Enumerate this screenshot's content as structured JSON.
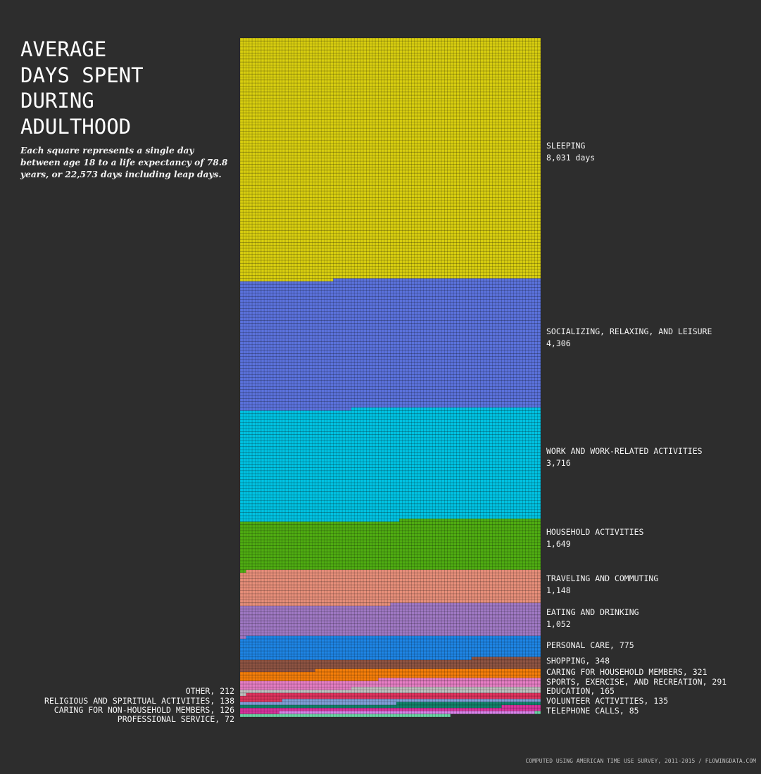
{
  "chart_data": {
    "type": "waffle",
    "title": [
      "AVERAGE",
      "DAYS SPENT",
      "DURING",
      "ADULTHOOD"
    ],
    "subtitle": "Each square represents a single day between age 18 to a life expectancy of 78.8 years, or 22,573 days including leap days.",
    "total_days": 22573,
    "columns": 100,
    "unit": "days",
    "categories": [
      {
        "name": "SLEEPING",
        "value": 8031,
        "value_label": "8,031 days",
        "color": "#d8ce10",
        "label_side": "right",
        "label_style": "two-line"
      },
      {
        "name": "SOCIALIZING, RELAXING, AND LEISURE",
        "value": 4306,
        "value_label": "4,306",
        "color": "#5b72dc",
        "label_side": "right",
        "label_style": "two-line"
      },
      {
        "name": "WORK AND WORK-RELATED ACTIVITIES",
        "value": 3716,
        "value_label": "3,716",
        "color": "#00c2e2",
        "label_side": "right",
        "label_style": "two-line"
      },
      {
        "name": "HOUSEHOLD ACTIVITIES",
        "value": 1649,
        "value_label": "1,649",
        "color": "#4fad12",
        "label_side": "right",
        "label_style": "two-line"
      },
      {
        "name": "TRAVELING AND COMMUTING",
        "value": 1148,
        "value_label": "1,148",
        "color": "#e78f7a",
        "label_side": "right",
        "label_style": "two-line"
      },
      {
        "name": "EATING AND DRINKING",
        "value": 1052,
        "value_label": "1,052",
        "color": "#a079c4",
        "label_side": "right",
        "label_style": "two-line"
      },
      {
        "name": "PERSONAL CARE",
        "value": 775,
        "value_label": "775",
        "color": "#1e85e5",
        "label_side": "right",
        "label_style": "inline"
      },
      {
        "name": "SHOPPING",
        "value": 348,
        "value_label": "348",
        "color": "#8e5443",
        "label_side": "right",
        "label_style": "inline"
      },
      {
        "name": "CARING FOR HOUSEHOLD MEMBERS",
        "value": 321,
        "value_label": "321",
        "color": "#f57e0a",
        "label_side": "right",
        "label_style": "inline"
      },
      {
        "name": "SPORTS, EXERCISE, AND RECREATION",
        "value": 291,
        "value_label": "291",
        "color": "#e57dc3",
        "label_side": "right",
        "label_style": "inline"
      },
      {
        "name": "EDUCATION",
        "value": 165,
        "value_label": "165",
        "color": "#bfbfbf",
        "label_side": "right",
        "label_style": "inline"
      },
      {
        "name": "OTHER",
        "value": 212,
        "value_label": "212",
        "color": "#df345e",
        "label_side": "left",
        "label_style": "inline"
      },
      {
        "name": "RELIGIOUS AND SPIRITUAL ACTIVITIES",
        "value": 138,
        "value_label": "138",
        "color": "#7e9fd7",
        "label_side": "left",
        "label_style": "inline"
      },
      {
        "name": "VOLUNTEER ACTIVITIES",
        "value": 135,
        "value_label": "135",
        "color": "#128169",
        "label_side": "right",
        "label_style": "inline"
      },
      {
        "name": "CARING FOR NON-HOUSEHOLD MEMBERS",
        "value": 126,
        "value_label": "126",
        "color": "#d8349e",
        "label_side": "left",
        "label_style": "inline"
      },
      {
        "name": "TELEPHONE CALLS",
        "value": 85,
        "value_label": "85",
        "color": "#d884e9",
        "label_side": "right",
        "label_style": "inline"
      },
      {
        "name": "PROFESSIONAL SERVICE",
        "value": 72,
        "value_label": "72",
        "color": "#6ad5a3",
        "label_side": "left",
        "label_style": "inline"
      }
    ]
  },
  "footer": "COMPUTED USING AMERICAN TIME USE SURVEY, 2011-2015 / FLOWINGDATA.COM",
  "colors": {
    "background": "#2d2d2d",
    "text": "#ffffff"
  }
}
